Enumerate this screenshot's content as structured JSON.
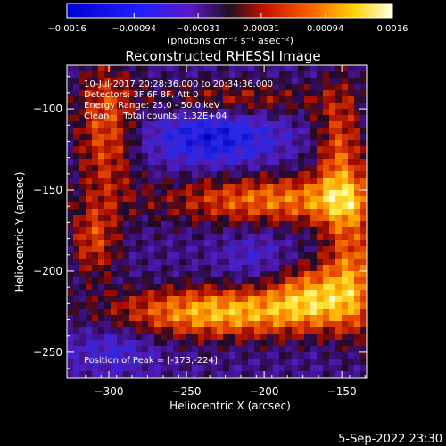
{
  "chart_data": {
    "type": "heatmap",
    "title": "Reconstructed RHESSI Image",
    "xlabel": "Heliocentric X (arcsec)",
    "ylabel": "Heliocentric Y (arcsec)",
    "xlim": [
      -327,
      -134
    ],
    "ylim": [
      -266,
      -73
    ],
    "xticks": [
      -300,
      -250,
      -200,
      -150
    ],
    "xtick_labels": [
      "−300",
      "−250",
      "−200",
      "−150"
    ],
    "yticks": [
      -100,
      -150,
      -200,
      -250
    ],
    "ytick_labels": [
      "−100",
      "−150",
      "−200",
      "−250"
    ],
    "colorbar": {
      "range": [
        -0.0016,
        0.0016
      ],
      "tick_values": [
        -0.0016,
        -0.00094,
        -0.00031,
        0.00031,
        0.00094,
        0.0016
      ],
      "tick_labels": [
        "−0.0016",
        "−0.00094",
        "−0.00031",
        "0.00031",
        "0.00094",
        "0.0016"
      ],
      "unit_label": "(photons cm⁻² s⁻¹ asec⁻²)"
    },
    "annotations": [
      "10-Jul-2017 20:28:36.000 to 20:34:36.000",
      "Detectors: 3F 6F 8F, Att 0",
      "Energy Range: 25.0 - 50.0 keV",
      "Clean     Total counts: 1.32E+04"
    ],
    "peak_label": "Position of Peak = [-173,-224]",
    "peak": {
      "x": -173,
      "y": -224
    },
    "grid": false,
    "colors": {
      "background": "#000000",
      "text": "#ffffff"
    }
  },
  "footer": {
    "timestamp": "5-Sep-2022 23:30"
  }
}
